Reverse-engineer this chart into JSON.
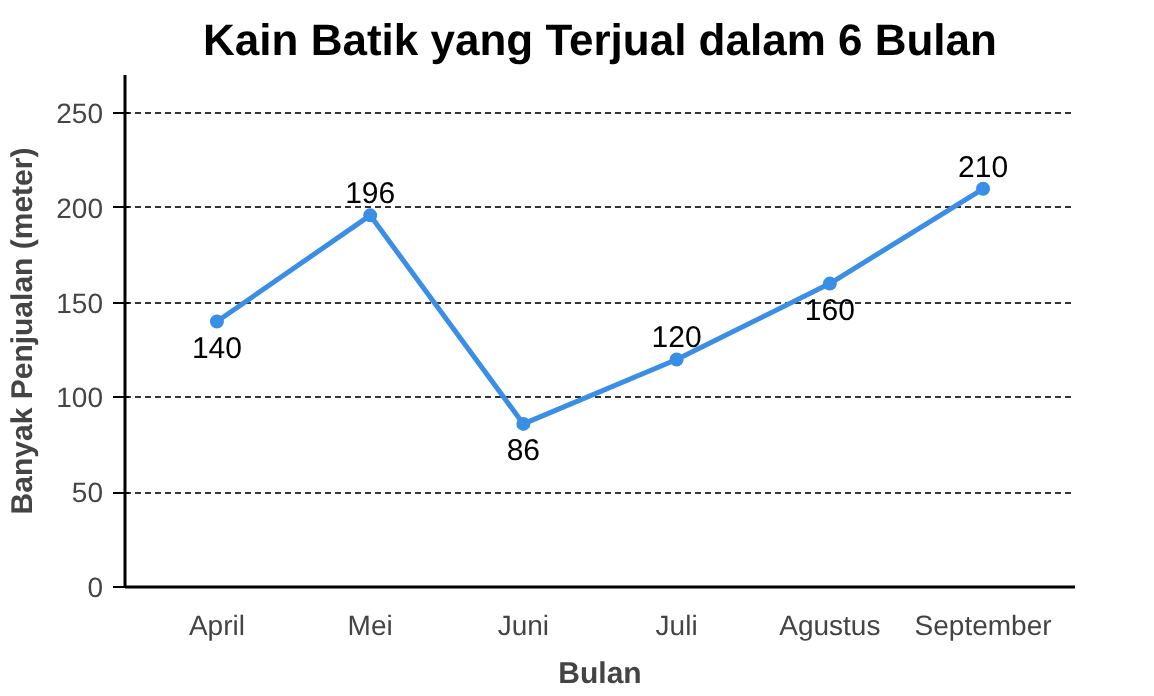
{
  "chart_data": {
    "type": "line",
    "title": "Kain Batik yang Terjual dalam 6 Bulan",
    "xlabel": "Bulan",
    "ylabel": "Banyak Penjualan (meter)",
    "categories": [
      "April",
      "Mei",
      "Juni",
      "Juli",
      "Agustus",
      "September"
    ],
    "series": [
      {
        "color": "#3a8ee6",
        "values": [
          140,
          196,
          86,
          120,
          160,
          210
        ]
      }
    ],
    "ylim": [
      0,
      270
    ],
    "yticks": [
      0,
      50,
      100,
      150,
      200,
      250
    ],
    "grid": "y",
    "marker": "circle",
    "line_style": "solid",
    "data_labels": true
  }
}
